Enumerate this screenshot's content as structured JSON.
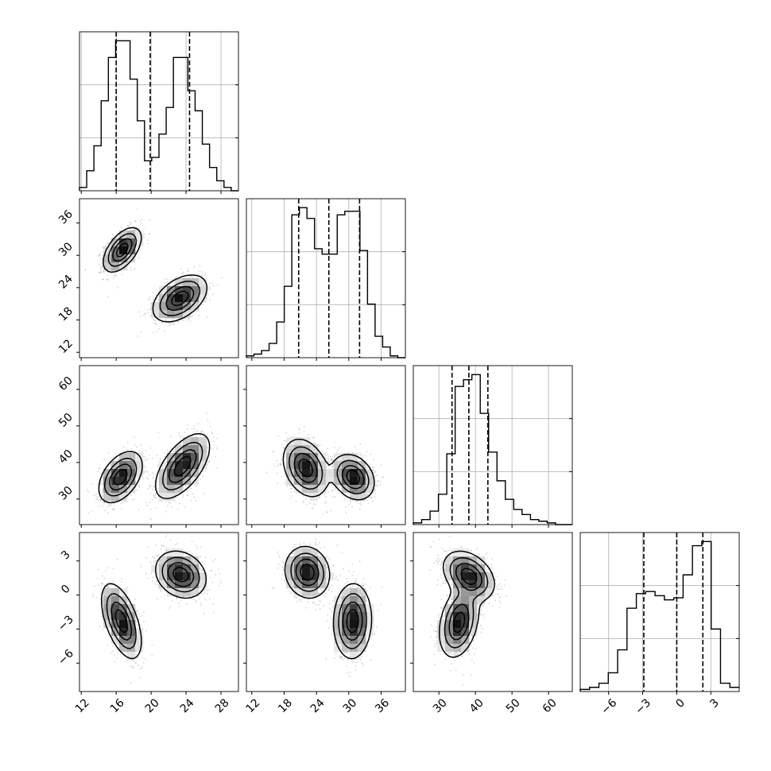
{
  "chart_data": {
    "type": "corner",
    "variables": [
      {
        "ticks": [
          12,
          16,
          20,
          24,
          28
        ],
        "tick_labels": [
          "12",
          "16",
          "20",
          "24",
          "28"
        ],
        "range": [
          11.8,
          30.0
        ],
        "quantiles": [
          16.0,
          19.9,
          24.4
        ]
      },
      {
        "ticks": [
          12,
          18,
          24,
          30,
          36
        ],
        "tick_labels": [
          "12",
          "18",
          "24",
          "30",
          "36"
        ],
        "range": [
          11.0,
          40.5
        ],
        "quantiles": [
          20.7,
          26.3,
          32.0
        ]
      },
      {
        "ticks": [
          30,
          40,
          50,
          60
        ],
        "tick_labels": [
          "30",
          "40",
          "50",
          "60"
        ],
        "range": [
          23.0,
          66.5
        ],
        "quantiles": [
          33.6,
          38.2,
          43.4
        ]
      },
      {
        "ticks": [
          -6,
          -3,
          0,
          3
        ],
        "tick_labels": [
          "−6",
          "−3",
          "0",
          "3"
        ],
        "range": [
          -8.5,
          5.5
        ],
        "quantiles": [
          -2.9,
          0.0,
          2.3
        ]
      }
    ],
    "histograms": [
      {
        "counts": [
          2,
          12,
          27,
          54,
          80,
          90,
          90,
          67,
          42,
          18,
          20,
          34,
          50,
          80,
          80,
          60,
          48,
          28,
          14,
          6,
          2,
          0
        ]
      },
      {
        "counts": [
          1,
          2,
          4,
          8,
          20,
          40,
          80,
          84,
          78,
          61,
          58,
          58,
          80,
          82,
          82,
          60,
          30,
          12,
          6,
          1,
          0
        ]
      },
      {
        "counts": [
          1,
          3,
          8,
          18,
          42,
          82,
          86,
          89,
          66,
          43,
          26,
          15,
          9,
          6,
          3,
          2,
          1,
          0,
          0
        ]
      },
      {
        "counts": [
          1,
          2,
          4,
          9,
          20,
          40,
          47,
          48,
          46,
          44,
          45,
          56,
          70,
          72,
          30,
          4,
          2
        ]
      }
    ],
    "pairs": [
      {
        "row": 1,
        "col": 0,
        "clusters": [
          {
            "center": [
              16.7,
              31.0
            ],
            "sd": [
              1.05,
              2.0
            ],
            "rho": 0.55
          },
          {
            "center": [
              23.3,
              22.0
            ],
            "sd": [
              1.5,
              2.1
            ],
            "rho": 0.45
          }
        ]
      },
      {
        "row": 2,
        "col": 0,
        "clusters": [
          {
            "center": [
              16.5,
              36.0
            ],
            "sd": [
              1.2,
              3.4
            ],
            "rho": 0.45
          },
          {
            "center": [
              23.6,
              39.0
            ],
            "sd": [
              1.5,
              4.3
            ],
            "rho": 0.6
          }
        ]
      },
      {
        "row": 2,
        "col": 1,
        "clusters": [
          {
            "center": [
              22.0,
              38.5
            ],
            "sd": [
              2.0,
              3.8
            ],
            "rho": -0.3
          },
          {
            "center": [
              30.8,
              36.0
            ],
            "sd": [
              1.9,
              3.0
            ],
            "rho": -0.25
          }
        ]
      },
      {
        "row": 3,
        "col": 0,
        "clusters": [
          {
            "center": [
              16.6,
              -2.3
            ],
            "sd": [
              1.1,
              1.6
            ],
            "rho": -0.55
          },
          {
            "center": [
              23.4,
              1.8
            ],
            "sd": [
              1.4,
              1.0
            ],
            "rho": -0.2
          }
        ]
      },
      {
        "row": 3,
        "col": 1,
        "clusters": [
          {
            "center": [
              22.3,
              2.0
            ],
            "sd": [
              2.0,
              1.1
            ],
            "rho": -0.1
          },
          {
            "center": [
              30.7,
              -2.3
            ],
            "sd": [
              1.7,
              1.6
            ],
            "rho": 0.05
          }
        ]
      },
      {
        "row": 3,
        "col": 2,
        "clusters": [
          {
            "center": [
              38.2,
              1.7
            ],
            "sd": [
              3.4,
              1.05
            ],
            "rho": -0.35
          },
          {
            "center": [
              35.5,
              -2.4
            ],
            "sd": [
              2.6,
              1.5
            ],
            "rho": 0.3
          }
        ]
      }
    ],
    "grid": true,
    "colors": {
      "line": "#000000",
      "points": "#888888",
      "grid": "#b0b0b0"
    }
  }
}
